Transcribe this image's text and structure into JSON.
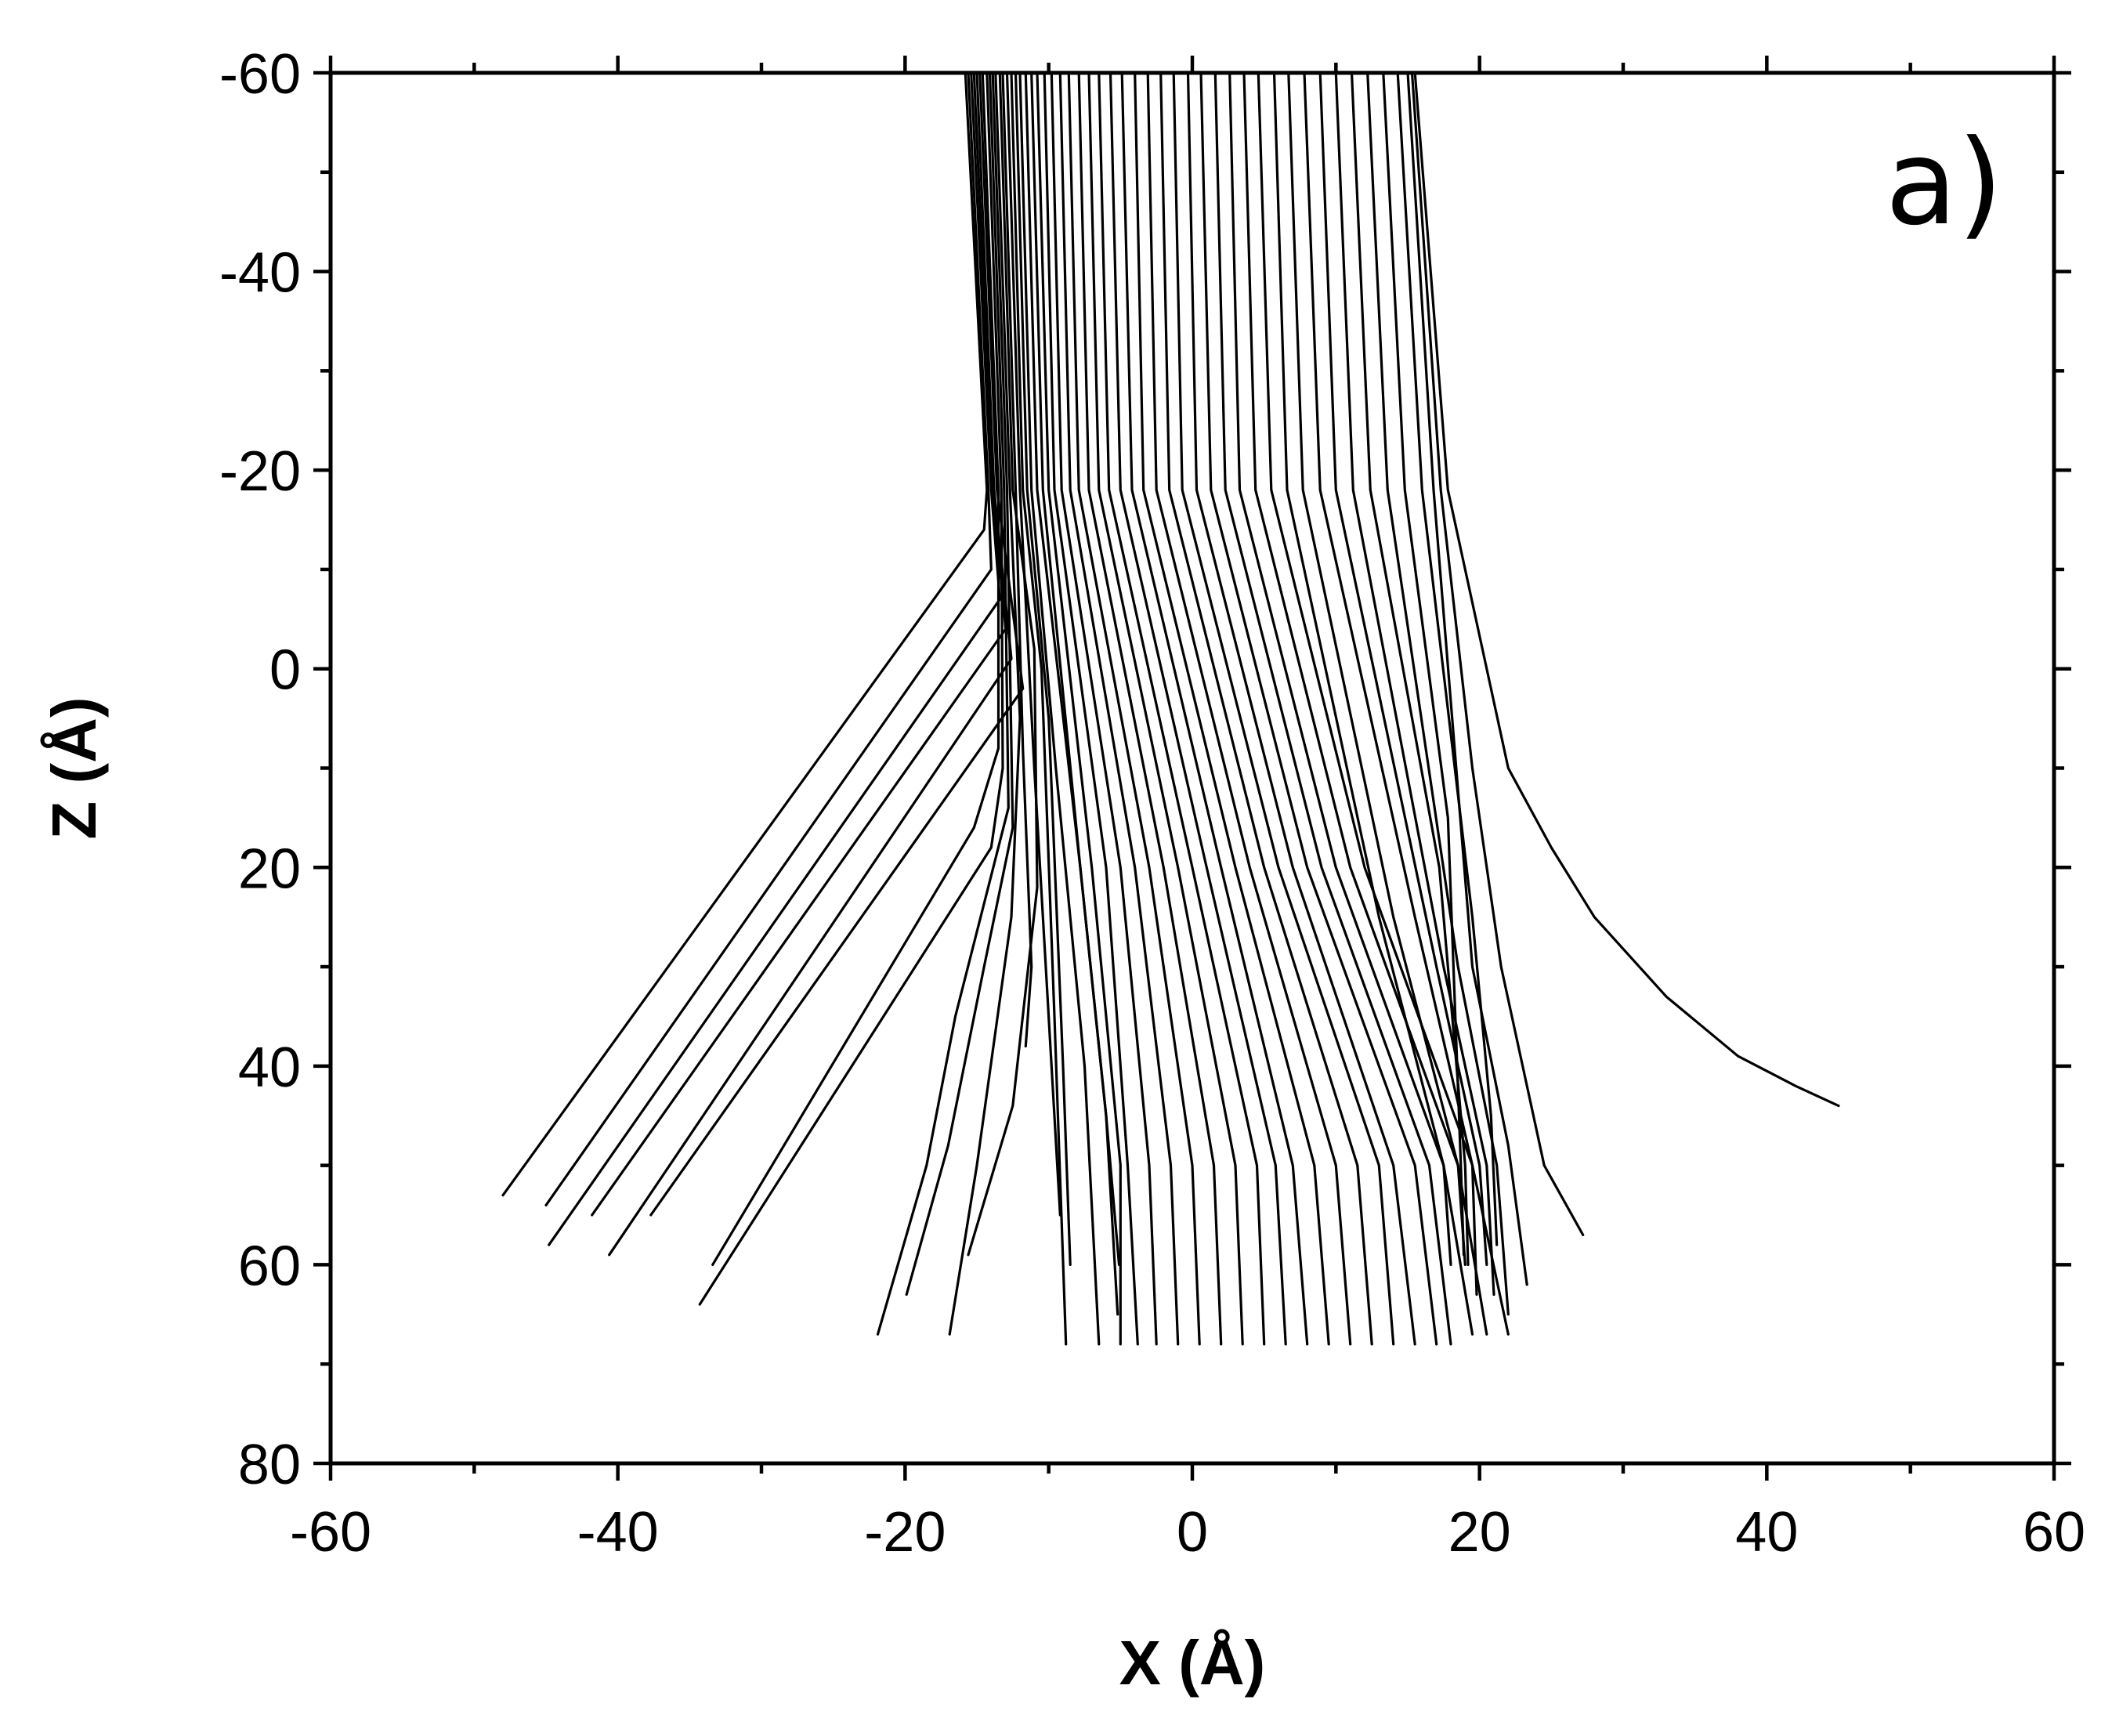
{
  "chart_data": {
    "type": "line",
    "panel_label": "a)",
    "xlabel": "X (Å)",
    "ylabel": "Z (Å)",
    "xlim": [
      -60,
      60
    ],
    "ylim": [
      -60,
      80
    ],
    "y_inverted": true,
    "xticks": [
      -60,
      -40,
      -20,
      0,
      20,
      40,
      60
    ],
    "yticks": [
      -60,
      -40,
      -20,
      0,
      20,
      40,
      60,
      80
    ],
    "x_minor_step": 10,
    "y_minor_step": 10,
    "grid": false,
    "legend": "none",
    "line_color": "#000000",
    "series": [
      {
        "x": [
          -15.8,
          -14.3,
          -14.5,
          -48.0
        ],
        "z": [
          -60,
          -18,
          -14,
          53
        ]
      },
      {
        "x": [
          -15.6,
          -14.2,
          -14.0,
          -45.0
        ],
        "z": [
          -60,
          -18,
          -10,
          54
        ]
      },
      {
        "x": [
          -15.4,
          -14.0,
          -13.4,
          -44.8
        ],
        "z": [
          -60,
          -18,
          -7,
          58
        ]
      },
      {
        "x": [
          -15.2,
          -13.9,
          -13.0,
          -41.8
        ],
        "z": [
          -60,
          -18,
          -4,
          55
        ]
      },
      {
        "x": [
          -15.0,
          -13.8,
          -12.6,
          -40.6
        ],
        "z": [
          -60,
          -18,
          -1,
          59
        ]
      },
      {
        "x": [
          -14.8,
          -13.6,
          -11.8,
          -37.7
        ],
        "z": [
          -60,
          -18,
          2,
          55
        ]
      },
      {
        "x": [
          -14.6,
          -13.5,
          -13.5,
          -15.2,
          -33.4
        ],
        "z": [
          -60,
          -18,
          8,
          16,
          60
        ]
      },
      {
        "x": [
          -14.3,
          -13.3,
          -13.2,
          -14.0,
          -34.3
        ],
        "z": [
          -60,
          -18,
          10,
          18,
          64
        ]
      },
      {
        "x": [
          -14.1,
          -13.1,
          -12.8,
          -16.5,
          -18.5,
          -21.9
        ],
        "z": [
          -60,
          -18,
          14,
          35,
          50,
          67
        ]
      },
      {
        "x": [
          -13.9,
          -12.9,
          -12.5,
          -14.5,
          -17.0,
          -19.9
        ],
        "z": [
          -60,
          -18,
          16,
          30,
          48,
          63
        ]
      },
      {
        "x": [
          -13.7,
          -12.7,
          -12.0,
          -12.6,
          -15.0,
          -16.9
        ],
        "z": [
          -60,
          -18,
          5,
          25,
          50,
          67
        ]
      },
      {
        "x": [
          -13.4,
          -12.5,
          -11.0,
          -10.8,
          -12.5,
          -15.6
        ],
        "z": [
          -60,
          -18,
          -2,
          22,
          44,
          59
        ]
      },
      {
        "x": [
          -13.2,
          -12.3,
          -11.8,
          -11.2,
          -11.6
        ],
        "z": [
          -60,
          -18,
          8,
          30,
          38
        ]
      },
      {
        "x": [
          -12.9,
          -12.0,
          -11.0,
          -9.8,
          -9.2
        ],
        "z": [
          -60,
          -18,
          10,
          40,
          55
        ]
      },
      {
        "x": [
          -12.6,
          -11.8,
          -10.5,
          -9.6,
          -8.8
        ],
        "z": [
          -60,
          -18,
          0,
          35,
          68
        ]
      },
      {
        "x": [
          -12.3,
          -11.5,
          -10.0,
          -9.0,
          -8.5
        ],
        "z": [
          -60,
          -18,
          5,
          40,
          60
        ]
      },
      {
        "x": [
          -12.0,
          -11.2,
          -9.5,
          -7.5,
          -6.5
        ],
        "z": [
          -60,
          -18,
          10,
          40,
          68
        ]
      },
      {
        "x": [
          -11.6,
          -10.8,
          -7.8,
          -6.0,
          -5.1
        ],
        "z": [
          -60,
          -18,
          20,
          45,
          60
        ]
      },
      {
        "x": [
          -11.2,
          -10.4,
          -7.8,
          -6.0,
          -5.2
        ],
        "z": [
          -60,
          -18,
          20,
          45,
          65
        ]
      },
      {
        "x": [
          -10.8,
          -10.0,
          -7.0,
          -5.0,
          -5.0
        ],
        "z": [
          -60,
          -18,
          20,
          50,
          68
        ]
      },
      {
        "x": [
          -10.3,
          -9.6,
          -6.0,
          -4.5,
          -3.8
        ],
        "z": [
          -60,
          -18,
          20,
          50,
          68
        ]
      },
      {
        "x": [
          -9.8,
          -9.1,
          -5.0,
          -3.0,
          -2.5
        ],
        "z": [
          -60,
          -18,
          20,
          50,
          68
        ]
      },
      {
        "x": [
          -9.2,
          -8.5,
          -4.0,
          -1.5,
          -1.0
        ],
        "z": [
          -60,
          -18,
          20,
          50,
          68
        ]
      },
      {
        "x": [
          -8.6,
          -7.9,
          -3.0,
          0.0,
          0.5
        ],
        "z": [
          -60,
          -18,
          20,
          50,
          68
        ]
      },
      {
        "x": [
          -7.9,
          -7.2,
          -2.0,
          1.5,
          2.0
        ],
        "z": [
          -60,
          -18,
          20,
          50,
          68
        ]
      },
      {
        "x": [
          -7.2,
          -6.5,
          -1.0,
          3.0,
          3.5
        ],
        "z": [
          -60,
          -18,
          20,
          50,
          68
        ]
      },
      {
        "x": [
          -6.5,
          -5.8,
          0.0,
          4.5,
          5.0
        ],
        "z": [
          -60,
          -18,
          20,
          50,
          68
        ]
      },
      {
        "x": [
          -5.7,
          -5.0,
          1.0,
          5.8,
          6.5
        ],
        "z": [
          -60,
          -18,
          20,
          50,
          68
        ]
      },
      {
        "x": [
          -4.9,
          -4.2,
          2.0,
          7.0,
          8.0
        ],
        "z": [
          -60,
          -18,
          20,
          50,
          68
        ]
      },
      {
        "x": [
          -4.0,
          -3.4,
          3.0,
          8.5,
          9.5
        ],
        "z": [
          -60,
          -18,
          20,
          50,
          68
        ]
      },
      {
        "x": [
          -3.1,
          -2.5,
          4.0,
          10.0,
          11.0
        ],
        "z": [
          -60,
          -18,
          20,
          50,
          68
        ]
      },
      {
        "x": [
          -2.2,
          -1.6,
          5.0,
          11.5,
          12.5
        ],
        "z": [
          -60,
          -18,
          20,
          50,
          68
        ]
      },
      {
        "x": [
          -1.3,
          -0.7,
          6.0,
          13.0,
          14.0
        ],
        "z": [
          -60,
          -18,
          20,
          50,
          68
        ]
      },
      {
        "x": [
          -0.3,
          0.3,
          7.0,
          14.0,
          15.5
        ],
        "z": [
          -60,
          -18,
          20,
          50,
          68
        ]
      },
      {
        "x": [
          0.6,
          1.3,
          8.0,
          15.5,
          17.0
        ],
        "z": [
          -60,
          -18,
          20,
          50,
          68
        ]
      },
      {
        "x": [
          1.6,
          2.3,
          9.0,
          16.5,
          18.0
        ],
        "z": [
          -60,
          -18,
          20,
          50,
          68
        ]
      },
      {
        "x": [
          2.6,
          3.3,
          10.0,
          17.5,
          19.5
        ],
        "z": [
          -60,
          -18,
          20,
          50,
          67
        ]
      },
      {
        "x": [
          3.6,
          4.4,
          11.0,
          18.5,
          20.5
        ],
        "z": [
          -60,
          -18,
          20,
          50,
          67
        ]
      },
      {
        "x": [
          4.6,
          5.5,
          12.0,
          19.5,
          22.0
        ],
        "z": [
          -60,
          -18,
          20,
          50,
          67
        ]
      },
      {
        "x": [
          5.7,
          6.6,
          13.0,
          17.5,
          18.0
        ],
        "z": [
          -60,
          -18,
          25,
          50,
          60
        ]
      },
      {
        "x": [
          6.7,
          7.7,
          14.0,
          18.5,
          19.0
        ],
        "z": [
          -60,
          -18,
          25,
          50,
          60
        ]
      },
      {
        "x": [
          7.8,
          8.9,
          15.5,
          19.5,
          19.8
        ],
        "z": [
          -60,
          -18,
          25,
          50,
          63
        ]
      },
      {
        "x": [
          8.9,
          10.0,
          17.0,
          20.0,
          20.5
        ],
        "z": [
          -60,
          -18,
          30,
          50,
          60
        ]
      },
      {
        "x": [
          10.0,
          11.2,
          17.5,
          20.5,
          21.0
        ],
        "z": [
          -60,
          -18,
          30,
          50,
          63
        ]
      },
      {
        "x": [
          11.1,
          12.4,
          17.2,
          19.0,
          19.2
        ],
        "z": [
          -60,
          -18,
          20,
          50,
          60
        ]
      },
      {
        "x": [
          12.2,
          13.6,
          18.5,
          21.2,
          22.0
        ],
        "z": [
          -60,
          -18,
          30,
          50,
          65
        ]
      },
      {
        "x": [
          13.3,
          14.8,
          17.8,
          18.7,
          18.9
        ],
        "z": [
          -60,
          -18,
          15,
          50,
          59
        ]
      },
      {
        "x": [
          14.3,
          16.0,
          19.5,
          20.8,
          21.2
        ],
        "z": [
          -60,
          -18,
          25,
          45,
          58
        ]
      },
      {
        "x": [
          15.0,
          16.8,
          19.5,
          22.0,
          23.3
        ],
        "z": [
          -60,
          -18,
          30,
          48,
          62
        ]
      },
      {
        "x": [
          15.3,
          17.3,
          19.5,
          21.5,
          24.5,
          27.2
        ],
        "z": [
          -60,
          -18,
          10,
          30,
          50,
          57
        ]
      },
      {
        "x": [
          15.5,
          17.8,
          20.5,
          22.0,
          25.0,
          28.0,
          33.0,
          38.0,
          42.0,
          45.0
        ],
        "z": [
          -60,
          -18,
          0,
          10,
          18,
          25,
          33,
          39,
          42,
          44
        ]
      }
    ]
  }
}
